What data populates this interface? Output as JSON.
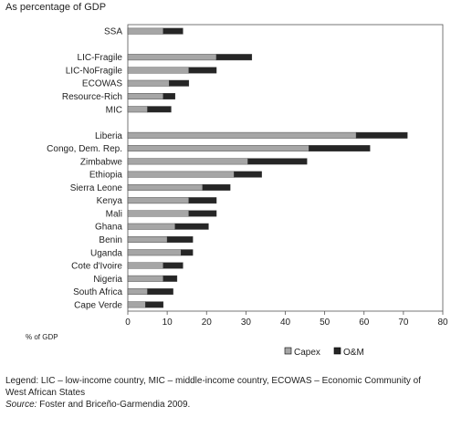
{
  "figure": {
    "title": "As percentage of GDP",
    "legend_note": "Legend: LIC – low-income country, MIC – middle-income country, ECOWAS –  Economic Community of West African States",
    "source_label": "Source:",
    "source_text": " Foster and Briceño-Garmendia 2009."
  },
  "chart_data": {
    "type": "bar",
    "orientation": "horizontal",
    "stacked": true,
    "title": "As percentage of GDP",
    "xlabel": "% of GDP",
    "ylabel": "",
    "xlim": [
      0,
      80
    ],
    "xticks": [
      0,
      10,
      20,
      30,
      40,
      50,
      60,
      70,
      80
    ],
    "grid": false,
    "legend_position": "bottom-right",
    "categories": [
      "SSA",
      "",
      "LIC-Fragile",
      "LIC-NoFragile",
      "ECOWAS",
      "Resource-Rich",
      "MIC",
      "",
      "Liberia",
      "Congo, Dem. Rep.",
      "Zimbabwe",
      "Ethiopia",
      "Sierra Leone",
      "Kenya",
      "Mali",
      "Ghana",
      "Benin",
      "Uganda",
      "Cote d'Ivoire",
      "Nigeria",
      "South Africa",
      "Cape Verde"
    ],
    "series": [
      {
        "name": "Capex",
        "color": "#a6a6a6",
        "values": [
          9,
          null,
          22.5,
          15.5,
          10.5,
          9,
          5,
          null,
          58,
          46,
          30.5,
          27,
          19,
          15.5,
          15.5,
          12,
          10,
          13.5,
          9,
          9,
          5,
          4.5
        ]
      },
      {
        "name": "O&M",
        "color": "#262626",
        "values": [
          5,
          null,
          9,
          7,
          5,
          3,
          6,
          null,
          13,
          15.5,
          15,
          7,
          7,
          7,
          7,
          8.5,
          6.5,
          3,
          5,
          3.5,
          6.5,
          4.5
        ]
      }
    ]
  }
}
